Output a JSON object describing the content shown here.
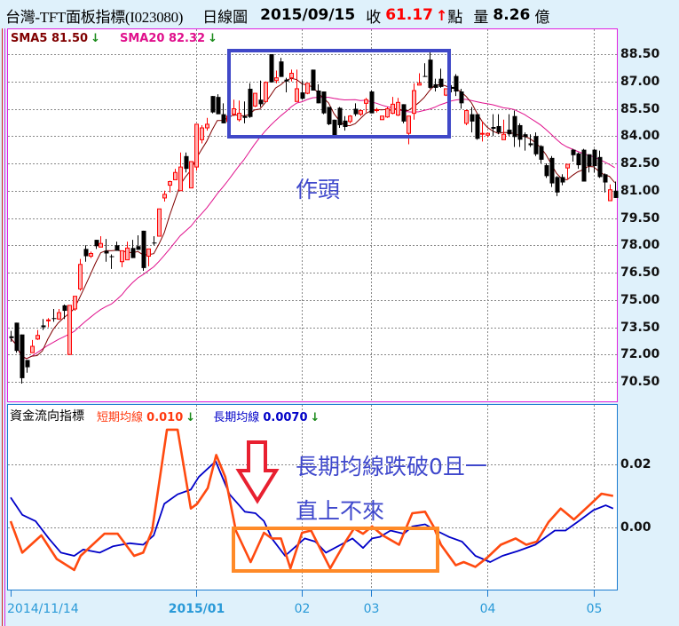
{
  "header": {
    "title": "台灣-TFT面板指標(I023080)",
    "period": "日線圖",
    "date": "2015/09/15",
    "close_label": "收",
    "close_value": "61.17",
    "close_direction": "up",
    "close_unit": "點",
    "volume_label": "量",
    "volume_value": "8.26",
    "volume_unit": "億"
  },
  "price_panel": {
    "legend": [
      {
        "label": "SMA5",
        "value": "81.50",
        "direction": "down",
        "color": "#800000"
      },
      {
        "label": "SMA20",
        "value": "82.32",
        "direction": "down",
        "color": "#e0108c"
      }
    ],
    "border_color": "#e020e0",
    "axis_labels": [
      "88.50",
      "87.00",
      "85.50",
      "84.00",
      "82.50",
      "81.00",
      "79.50",
      "78.00",
      "76.50",
      "75.00",
      "73.50",
      "72.00",
      "70.50"
    ],
    "annotation": "作頭"
  },
  "indicator_panel": {
    "title": "資金流向指標",
    "legend": [
      {
        "label": "短期均線",
        "value": "0.010",
        "direction": "down",
        "color": "#ff3a10"
      },
      {
        "label": "長期均線",
        "value": "0.0070",
        "direction": "down",
        "color": "#0000c8"
      }
    ],
    "border_color": "#1a7ad0",
    "axis_labels": [
      "0.02",
      "0.00"
    ],
    "annotation_line1": "長期均線跌破0且一",
    "annotation_line2": "直上不來"
  },
  "date_axis": [
    {
      "label": "2014/11/14",
      "bar": 0,
      "bold": false
    },
    {
      "label": "2015/01",
      "bar": 35,
      "bold": true
    },
    {
      "label": "02",
      "bar": 55,
      "bold": false
    },
    {
      "label": "03",
      "bar": 68,
      "bold": false
    },
    {
      "label": "04",
      "bar": 90,
      "bold": false
    },
    {
      "label": "05",
      "bar": 110,
      "bold": false
    }
  ],
  "colors": {
    "up": "#ff0000",
    "down": "#000000",
    "sma5": "#800000",
    "sma20": "#e0108c",
    "short": "#ff4a10",
    "long": "#0000c8",
    "annotation_box": "#4048c8",
    "annotation_box2": "#ff8a28",
    "arrow": "#e82030"
  },
  "chart_data": [
    {
      "type": "candlestick",
      "ylim": [
        70.5,
        88.5
      ],
      "grid": true,
      "ohlc": [
        [
          73.0,
          73.3,
          72.7,
          72.9
        ],
        [
          73.75,
          73.75,
          72.1,
          72.2
        ],
        [
          73.1,
          73.1,
          70.4,
          70.7
        ],
        [
          71.7,
          71.7,
          71.0,
          71.3
        ],
        [
          72.1,
          72.8,
          72.1,
          72.45
        ],
        [
          72.85,
          73.35,
          72.8,
          73.05
        ],
        [
          73.6,
          73.95,
          73.35,
          73.5
        ],
        [
          73.85,
          74.0,
          73.5,
          73.9
        ],
        [
          74.0,
          74.5,
          73.8,
          73.95
        ],
        [
          73.95,
          74.5,
          73.9,
          74.3
        ],
        [
          74.7,
          74.75,
          73.95,
          74.4
        ],
        [
          72.0,
          74.7,
          72.0,
          74.7
        ],
        [
          74.5,
          75.2,
          74.4,
          75.2
        ],
        [
          75.6,
          77.25,
          75.5,
          76.95
        ],
        [
          77.8,
          78.0,
          77.1,
          77.4
        ],
        [
          77.4,
          77.65,
          77.3,
          77.55
        ],
        [
          78.3,
          78.3,
          77.8,
          77.95
        ],
        [
          77.9,
          78.5,
          77.9,
          78.1
        ],
        [
          77.7,
          78.35,
          77.1,
          77.55
        ],
        [
          77.4,
          77.5,
          76.7,
          77.35
        ],
        [
          78.0,
          78.2,
          77.7,
          77.7
        ],
        [
          77.1,
          77.7,
          76.8,
          77.7
        ],
        [
          77.2,
          78.2,
          77.2,
          77.85
        ],
        [
          77.85,
          78.3,
          77.3,
          77.3
        ],
        [
          77.95,
          78.55,
          77.75,
          77.75
        ],
        [
          78.8,
          78.8,
          76.6,
          76.75
        ],
        [
          77.4,
          77.8,
          76.85,
          77.8
        ],
        [
          78.15,
          78.5,
          78.0,
          78.1
        ],
        [
          78.5,
          80.0,
          78.5,
          80.0
        ],
        [
          80.6,
          81.0,
          80.4,
          80.8
        ],
        [
          81.3,
          81.55,
          80.9,
          81.5
        ],
        [
          81.6,
          82.2,
          81.6,
          82.0
        ],
        [
          81.0,
          83.1,
          81.0,
          82.3
        ],
        [
          82.9,
          83.1,
          82.0,
          82.2
        ],
        [
          81.15,
          82.6,
          81.15,
          82.6
        ],
        [
          82.3,
          84.65,
          82.1,
          84.65
        ],
        [
          83.8,
          84.6,
          83.6,
          84.45
        ],
        [
          84.45,
          85.0,
          84.3,
          84.65
        ],
        [
          86.2,
          86.2,
          85.25,
          85.3
        ],
        [
          86.15,
          86.3,
          85.2,
          85.2
        ],
        [
          85.2,
          85.8,
          84.7,
          84.7
        ],
        [
          84.8,
          85.3,
          84.6,
          85.1
        ],
        [
          85.2,
          86.0,
          85.1,
          85.5
        ],
        [
          84.9,
          85.95,
          84.8,
          85.25
        ],
        [
          85.1,
          85.9,
          84.7,
          85.0
        ],
        [
          86.6,
          86.9,
          85.0,
          85.05
        ],
        [
          85.65,
          86.35,
          85.6,
          86.35
        ],
        [
          86.0,
          87.05,
          85.6,
          85.75
        ],
        [
          85.9,
          87.0,
          85.9,
          86.95
        ],
        [
          88.5,
          88.5,
          86.95,
          86.95
        ],
        [
          87.05,
          87.6,
          86.9,
          87.2
        ],
        [
          88.1,
          88.3,
          87.25,
          87.25
        ],
        [
          87.1,
          87.2,
          86.4,
          87.0
        ],
        [
          87.2,
          87.65,
          87.0,
          87.45
        ],
        [
          85.9,
          87.65,
          85.9,
          86.6
        ],
        [
          86.4,
          87.05,
          86.0,
          86.05
        ],
        [
          86.35,
          86.9,
          86.3,
          86.9
        ],
        [
          87.65,
          87.65,
          86.5,
          86.5
        ],
        [
          86.5,
          86.85,
          85.8,
          85.8
        ],
        [
          86.45,
          86.45,
          85.2,
          85.25
        ],
        [
          85.6,
          85.6,
          84.6,
          84.65
        ],
        [
          84.9,
          84.9,
          84.0,
          84.0
        ],
        [
          85.55,
          85.6,
          84.45,
          84.6
        ],
        [
          84.85,
          85.1,
          84.3,
          84.5
        ],
        [
          84.8,
          85.15,
          84.7,
          85.1
        ],
        [
          85.5,
          85.8,
          85.1,
          85.2
        ],
        [
          85.2,
          85.45,
          85.1,
          85.4
        ],
        [
          85.8,
          86.1,
          85.3,
          86.0
        ],
        [
          86.45,
          86.5,
          85.25,
          85.25
        ],
        [
          85.45,
          85.55,
          85.3,
          85.45
        ],
        [
          84.9,
          85.1,
          84.9,
          85.1
        ],
        [
          85.05,
          85.6,
          85.0,
          85.5
        ],
        [
          85.25,
          86.15,
          85.2,
          85.75
        ],
        [
          85.15,
          86.1,
          85.1,
          85.85
        ],
        [
          85.75,
          85.75,
          84.7,
          84.8
        ],
        [
          84.15,
          85.1,
          83.55,
          85.1
        ],
        [
          85.25,
          86.9,
          84.9,
          86.5
        ],
        [
          86.8,
          87.45,
          86.8,
          86.9
        ],
        [
          87.3,
          88.0,
          87.25,
          87.25
        ],
        [
          88.2,
          88.6,
          86.6,
          86.65
        ],
        [
          86.85,
          87.15,
          86.45,
          86.65
        ],
        [
          87.15,
          87.7,
          86.65,
          86.7
        ],
        [
          86.25,
          86.6,
          86.2,
          86.6
        ],
        [
          86.7,
          86.8,
          86.4,
          86.6
        ],
        [
          87.3,
          87.4,
          86.2,
          86.45
        ],
        [
          86.45,
          86.6,
          85.5,
          85.8
        ],
        [
          84.7,
          85.45,
          84.6,
          85.4
        ],
        [
          85.2,
          85.6,
          84.2,
          84.8
        ],
        [
          85.2,
          85.2,
          83.8,
          83.85
        ],
        [
          84.15,
          84.8,
          83.7,
          84.15
        ],
        [
          84.05,
          84.2,
          83.95,
          84.15
        ],
        [
          84.5,
          85.2,
          84.0,
          84.4
        ],
        [
          84.55,
          85.2,
          84.1,
          84.2
        ],
        [
          83.8,
          84.9,
          83.8,
          84.1
        ],
        [
          84.35,
          85.2,
          84.0,
          84.1
        ],
        [
          85.1,
          85.4,
          83.4,
          83.95
        ],
        [
          84.6,
          84.7,
          83.4,
          83.8
        ],
        [
          84.1,
          84.2,
          83.2,
          83.95
        ],
        [
          83.6,
          84.1,
          83.4,
          83.5
        ],
        [
          84.0,
          84.2,
          82.9,
          83.0
        ],
        [
          83.45,
          83.5,
          82.5,
          82.7
        ],
        [
          82.4,
          82.5,
          81.7,
          81.8
        ],
        [
          82.8,
          82.9,
          81.2,
          81.4
        ],
        [
          81.75,
          81.8,
          80.7,
          80.9
        ],
        [
          81.75,
          81.9,
          81.3,
          81.45
        ],
        [
          82.25,
          82.45,
          81.6,
          82.45
        ],
        [
          83.25,
          83.3,
          82.6,
          82.95
        ],
        [
          83.05,
          83.1,
          82.2,
          82.4
        ],
        [
          83.25,
          83.3,
          81.5,
          81.5
        ],
        [
          83.0,
          83.0,
          82.0,
          82.35
        ],
        [
          83.25,
          83.3,
          82.0,
          82.35
        ],
        [
          82.85,
          83.2,
          81.7,
          81.75
        ],
        [
          81.9,
          81.95,
          80.9,
          81.45
        ],
        [
          80.45,
          81.35,
          80.45,
          81.05
        ],
        [
          81.0,
          81.5,
          80.6,
          80.6
        ]
      ],
      "overlays": [
        "SMA5",
        "SMA20"
      ]
    },
    {
      "type": "line",
      "ylim": [
        -0.02,
        0.04
      ],
      "grid": true,
      "series": [
        {
          "name": "短期均線",
          "points": [
            [
              0,
              0.002
            ],
            [
              2.2,
              -0.008
            ],
            [
              5.8,
              -0.0025
            ],
            [
              8.7,
              -0.01
            ],
            [
              12,
              -0.0135
            ],
            [
              13.2,
              -0.009
            ],
            [
              17.7,
              -0.002
            ],
            [
              20.2,
              -0.002
            ],
            [
              23.3,
              -0.009
            ],
            [
              25,
              -0.008
            ],
            [
              26.7,
              -0.001
            ],
            [
              29.5,
              0.031
            ],
            [
              31.5,
              0.031
            ],
            [
              34,
              0.006
            ],
            [
              35.2,
              0.0075
            ],
            [
              37.2,
              0.0125
            ],
            [
              38.8,
              0.023
            ],
            [
              40.5,
              0.016
            ],
            [
              42.5,
              -0.001
            ],
            [
              45.3,
              -0.011
            ],
            [
              47.8,
              -0.0017
            ],
            [
              49.3,
              -0.0035
            ],
            [
              51,
              -0.0035
            ],
            [
              52.8,
              -0.013
            ],
            [
              55,
              -0.0017
            ],
            [
              56.7,
              -0.001
            ],
            [
              60.3,
              -0.013
            ],
            [
              63.2,
              -0.0045
            ],
            [
              64.8,
              -0.0003
            ],
            [
              66.5,
              -0.002
            ],
            [
              68.2,
              0.0003
            ],
            [
              70.2,
              -0.0025
            ],
            [
              73.3,
              -0.0055
            ],
            [
              75.8,
              0.0045
            ],
            [
              78.2,
              0.005
            ],
            [
              79.8,
              0.0003
            ],
            [
              81.2,
              -0.0055
            ],
            [
              84,
              -0.012
            ],
            [
              85.5,
              -0.011
            ],
            [
              87.7,
              -0.0125
            ],
            [
              90,
              -0.0095
            ],
            [
              92.5,
              -0.0055
            ],
            [
              95.3,
              -0.0035
            ],
            [
              97.3,
              -0.0055
            ],
            [
              99.3,
              -0.0045
            ],
            [
              101.5,
              0.0017
            ],
            [
              103.8,
              0.006
            ],
            [
              106.3,
              0.0025
            ],
            [
              109.5,
              0.0075
            ],
            [
              111.5,
              0.0107
            ],
            [
              113.7,
              0.01
            ]
          ]
        },
        {
          "name": "長期均線",
          "points": [
            [
              0,
              0.0095
            ],
            [
              2.2,
              0.004
            ],
            [
              4.7,
              0.002
            ],
            [
              7.2,
              -0.0035
            ],
            [
              9.5,
              -0.008
            ],
            [
              12,
              -0.009
            ],
            [
              13.7,
              -0.007
            ],
            [
              16.8,
              -0.008
            ],
            [
              19.3,
              -0.006
            ],
            [
              22.5,
              -0.005
            ],
            [
              25,
              -0.0055
            ],
            [
              27,
              -0.0025
            ],
            [
              29,
              0.0075
            ],
            [
              31.5,
              0.0105
            ],
            [
              34,
              0.012
            ],
            [
              35.5,
              0.016
            ],
            [
              38.7,
              0.021
            ],
            [
              41.3,
              0.0105
            ],
            [
              44.2,
              0.005
            ],
            [
              46.2,
              0.0045
            ],
            [
              47.8,
              0.002
            ],
            [
              49.3,
              -0.0035
            ],
            [
              51.8,
              -0.009
            ],
            [
              55.5,
              -0.0035
            ],
            [
              57.5,
              -0.0045
            ],
            [
              59.5,
              -0.008
            ],
            [
              62.3,
              -0.0055
            ],
            [
              64.5,
              -0.0035
            ],
            [
              66.5,
              -0.0065
            ],
            [
              68.2,
              -0.0035
            ],
            [
              69.7,
              -0.003
            ],
            [
              71.7,
              -0.001
            ],
            [
              74.2,
              -0.002
            ],
            [
              75.8,
              0.0003
            ],
            [
              78.2,
              0.001
            ],
            [
              80.3,
              -0.001
            ],
            [
              82.7,
              -0.003
            ],
            [
              85.2,
              -0.0045
            ],
            [
              87.7,
              -0.009
            ],
            [
              90.5,
              -0.011
            ],
            [
              92.8,
              -0.009
            ],
            [
              95.7,
              -0.0075
            ],
            [
              99,
              -0.0055
            ],
            [
              102.7,
              -0.001
            ],
            [
              104.7,
              -0.001
            ],
            [
              107.2,
              0.002
            ],
            [
              110,
              0.0055
            ],
            [
              112.3,
              0.007
            ],
            [
              113.7,
              0.006
            ]
          ]
        }
      ]
    }
  ]
}
